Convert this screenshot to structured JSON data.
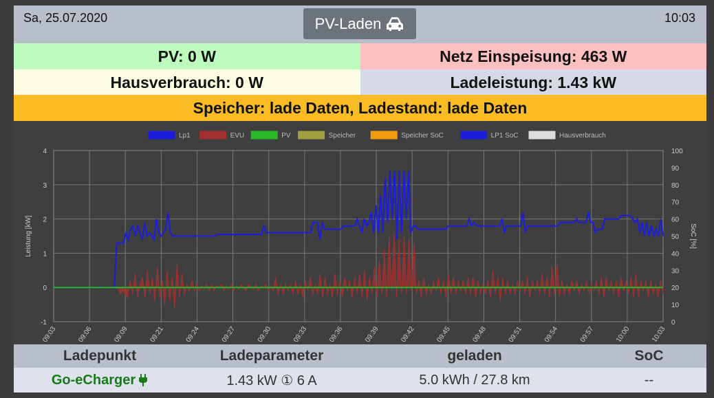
{
  "header": {
    "date": "Sa, 25.07.2020",
    "time": "10:03",
    "mode_label": "PV-Laden",
    "mode_icon": "car-icon"
  },
  "status": {
    "pv": "PV: 0 W",
    "grid": "Netz Einspeisung: 463 W",
    "house": "Hausverbrauch: 0 W",
    "charge_power": "Ladeleistung: 1.43 kW",
    "storage": "Speicher: lade Daten, Ladestand: lade Daten"
  },
  "colors": {
    "pv_bg": "#bdfcbd",
    "grid_bg": "#fcc0c0",
    "house_bg": "#fdfde3",
    "charge_bg": "#d4d9e5",
    "storage_bg": "#fbbc23"
  },
  "chart_data": {
    "type": "line",
    "legend_position": "top",
    "legend": [
      {
        "name": "Lp1",
        "color": "#1c1cdc"
      },
      {
        "name": "EVU",
        "color": "#a33030"
      },
      {
        "name": "PV",
        "color": "#28b828"
      },
      {
        "name": "Speicher",
        "color": "#a0a040"
      },
      {
        "name": "Speicher SoC",
        "color": "#f39c12"
      },
      {
        "name": "LP1 SoC",
        "color": "#1c1cdc"
      },
      {
        "name": "Hausverbrauch",
        "color": "#dddddd"
      }
    ],
    "ylabel_left": "Leistung [kW]",
    "ylabel_right": "SoC [%]",
    "ylim_left": [
      -1,
      4
    ],
    "ylim_right": [
      0,
      100
    ],
    "yticks_left": [
      "-1",
      "0",
      "1",
      "2",
      "3",
      "4"
    ],
    "yticks_right": [
      "0",
      "10",
      "20",
      "30",
      "40",
      "50",
      "60",
      "70",
      "80",
      "90",
      "100"
    ],
    "xticks": [
      "09:03",
      "09:06",
      "09:09",
      "09:21",
      "09:24",
      "09:27",
      "09:30",
      "09:33",
      "09:36",
      "09:39",
      "09:42",
      "09:45",
      "09:48",
      "09:51",
      "09:54",
      "09:57",
      "10:00",
      "10:03"
    ],
    "grid": true,
    "series": [
      {
        "name": "Lp1",
        "values": [
          0,
          0,
          0,
          0,
          0,
          0,
          0,
          0,
          0,
          0.01,
          0,
          0,
          0,
          0,
          0,
          0,
          0,
          0,
          0,
          0,
          0.02,
          0,
          0,
          0,
          0,
          0,
          0,
          1.3,
          1.3,
          1.3,
          1.3,
          1.6,
          1.4,
          1.7,
          1.8,
          1.5,
          1.8,
          1.6,
          1.4,
          1.9,
          1.5,
          1.6,
          1.5,
          1.4,
          2.0,
          1.6,
          1.5,
          1.6,
          1.7,
          2.2,
          1.6,
          1.5,
          1.5,
          1.5,
          1.5,
          1.5,
          1.5,
          1.5,
          1.5,
          1.5,
          1.5,
          1.5,
          1.5,
          1.5,
          1.5,
          1.5,
          1.5,
          1.5,
          1.5,
          1.5,
          1.55,
          1.55,
          1.55,
          1.55,
          1.55,
          1.55,
          1.55,
          1.55,
          1.55,
          1.55,
          1.55,
          1.55,
          1.55,
          1.55,
          1.55,
          1.55,
          1.55,
          1.55,
          1.55,
          1.55,
          1.8,
          1.6,
          1.6,
          1.6,
          1.6,
          1.6,
          1.6,
          1.6,
          1.6,
          1.6,
          1.6,
          1.6,
          1.6,
          1.6,
          1.6,
          1.6,
          1.6,
          1.6,
          1.6,
          1.6,
          1.6,
          1.9,
          1.9,
          1.9,
          1.4,
          1.9,
          1.7,
          1.7,
          1.7,
          1.7,
          1.7,
          1.7,
          1.7,
          1.7,
          1.8,
          1.8,
          1.8,
          1.8,
          1.8,
          1.8,
          2.0,
          1.8,
          1.6,
          2.0,
          1.8,
          1.9,
          2.2,
          1.6,
          2.4,
          1.6,
          2.7,
          1.6,
          3.2,
          1.9,
          3.4,
          2.0,
          3.4,
          1.4,
          3.4,
          1.6,
          3.4,
          2.0,
          3.4,
          1.6,
          1.8,
          1.8,
          1.7,
          1.7,
          1.7,
          1.7,
          1.7,
          1.7,
          1.7,
          1.7,
          1.7,
          1.7,
          1.7,
          1.7,
          1.7,
          1.8,
          1.8,
          1.8,
          1.8,
          1.8,
          1.8,
          1.8,
          1.8,
          1.8,
          2.0,
          1.8,
          1.9,
          1.8,
          1.8,
          1.8,
          1.8,
          1.8,
          1.8,
          1.8,
          1.8,
          1.8,
          1.8,
          1.8,
          2.0,
          1.6,
          1.8,
          1.8,
          1.8,
          1.8,
          1.8,
          1.8,
          1.8,
          2.2,
          1.6,
          1.8,
          1.8,
          1.8,
          1.8,
          1.8,
          1.8,
          1.8,
          1.8,
          1.8,
          1.8,
          1.8,
          1.8,
          1.8,
          1.8,
          1.9,
          1.9,
          1.9,
          1.9,
          1.9,
          1.9,
          1.9,
          2.0,
          1.9,
          1.9,
          1.9,
          1.9,
          2.2,
          1.9,
          1.9,
          1.6,
          1.7,
          1.7,
          1.7,
          2.0,
          2.0,
          2.0,
          2.0,
          2.0,
          2.0,
          2.0,
          2.1,
          2.1,
          2.1,
          2.1,
          2.1,
          2.0,
          1.9,
          2.0,
          1.6,
          1.9,
          1.5,
          1.9,
          1.5,
          1.8,
          1.5,
          1.7,
          1.5,
          2.0,
          1.5
        ]
      },
      {
        "name": "EVU",
        "values": [
          0,
          0,
          0,
          0,
          0,
          0,
          0,
          0,
          0,
          0,
          0,
          0,
          0,
          0,
          0,
          0,
          0,
          0,
          0,
          0,
          0,
          0,
          0,
          0,
          0,
          0,
          0,
          -0.2,
          -0.1,
          -0.2,
          -0.3,
          0.2,
          -0.2,
          0.4,
          -0.3,
          0.1,
          0.3,
          -0.3,
          0.5,
          -0.2,
          0.3,
          -0.4,
          0.6,
          -0.3,
          0.2,
          -0.5,
          0.5,
          -0.4,
          0.3,
          -0.6,
          0.7,
          -0.3,
          0.4,
          -0.2,
          0.1,
          -0.1,
          0.2,
          -0.1,
          0.1,
          -0.1,
          0.05,
          -0.05,
          0.1,
          -0.1,
          0.1,
          -0.1,
          0.05,
          0.0,
          0.1,
          -0.1,
          0.05,
          -0.05,
          0.1,
          -0.1,
          0.05,
          -0.05,
          0.1,
          0.0,
          -0.1,
          0.1,
          0.0,
          -0.05,
          0.1,
          -0.1,
          0.05,
          0.0,
          0.1,
          -0.1,
          0.05,
          -0.1,
          0.3,
          -0.2,
          0.1,
          -0.2,
          0.1,
          -0.1,
          0.1,
          -0.2,
          0.2,
          -0.2,
          0.1,
          -0.3,
          0.2,
          -0.1,
          0.3,
          -0.2,
          0.1,
          -0.2,
          0.4,
          -0.3,
          0.3,
          -0.2,
          0.1,
          -0.3,
          0.4,
          -0.2,
          0.2,
          -0.3,
          0.3,
          -0.1,
          0.2,
          -0.3,
          0.3,
          -0.2,
          0.4,
          -0.3,
          0.5,
          -0.4,
          0.3,
          -0.2,
          0.6,
          -0.3,
          0.8,
          -0.2,
          1.1,
          -0.3,
          1.5,
          -0.1,
          1.6,
          -0.3,
          1.4,
          -0.2,
          1.5,
          -0.2,
          1.4,
          -0.1,
          1.3,
          -0.2,
          0.2,
          -0.3,
          0.3,
          -0.2,
          0.1,
          -0.2,
          0.2,
          -0.1,
          0.3,
          -0.2,
          0.2,
          -0.3,
          0.4,
          -0.2,
          0.3,
          -0.2,
          0.2,
          -0.1,
          0.2,
          -0.2,
          0.3,
          -0.2,
          0.3,
          -0.3,
          0.2,
          -0.2,
          0.1,
          -0.2,
          0.2,
          -0.3,
          0.5,
          -0.2,
          0.3,
          -0.4,
          0.3,
          -0.2,
          0.2,
          -0.2,
          0.1,
          -0.2,
          0.2,
          -0.1,
          0.2,
          -0.2,
          0.3,
          -0.3,
          0.2,
          -0.1,
          0.2,
          -0.2,
          0.4,
          -0.2,
          0.3,
          -0.3,
          0.6,
          -0.2,
          0.7,
          -0.3,
          0.2,
          -0.2,
          0.1,
          -0.2,
          0.2,
          -0.1,
          0.2,
          -0.2,
          0.1,
          -0.1,
          0.2,
          -0.2,
          0.1,
          -0.1,
          0.2,
          -0.2,
          0.3,
          -0.3,
          0.3,
          -0.1,
          0.2,
          -0.2,
          0.2,
          -0.3,
          0.3,
          -0.1,
          0.2,
          -0.2,
          0.3,
          -0.3,
          0.4,
          -0.3,
          0.2,
          -0.1,
          0.2,
          -0.3,
          0.2,
          -0.2,
          0.1,
          -0.3,
          0.2,
          -0.2
        ]
      },
      {
        "name": "PV",
        "values": [
          0,
          0,
          0,
          0,
          0,
          0,
          0,
          0,
          0,
          0,
          0,
          0,
          0,
          0,
          0,
          0,
          0,
          0,
          0,
          0,
          0,
          0,
          0,
          0,
          0,
          0,
          0,
          0,
          0,
          0,
          0,
          0,
          0,
          0,
          0,
          0,
          0,
          0,
          0,
          0,
          0,
          0,
          0,
          0,
          0,
          0,
          0,
          0,
          0,
          0,
          0,
          0,
          0,
          0,
          0,
          0,
          0,
          0,
          0,
          0,
          0,
          0,
          0,
          0,
          0,
          0,
          0,
          0,
          0,
          0,
          0,
          0,
          0,
          0,
          0,
          0,
          0,
          0,
          0,
          0,
          0,
          0,
          0,
          0,
          0,
          0,
          0,
          0,
          0,
          0,
          0,
          0,
          0,
          0,
          0,
          0,
          0,
          0,
          0,
          0,
          0,
          0,
          0,
          0,
          0,
          0,
          0,
          0,
          0,
          0,
          0,
          0,
          0,
          0,
          0,
          0,
          0,
          0,
          0,
          0,
          0,
          0,
          0,
          0,
          0,
          0,
          0,
          0,
          0,
          0,
          0,
          0,
          0,
          0,
          0,
          0,
          0,
          0,
          0,
          0,
          0,
          0,
          0,
          0,
          0,
          0,
          0,
          0,
          0,
          0,
          0,
          0,
          0,
          0,
          0,
          0,
          0,
          0,
          0,
          0,
          0,
          0,
          0,
          0,
          0,
          0,
          0,
          0,
          0,
          0,
          0,
          0,
          0,
          0,
          0,
          0,
          0,
          0,
          0,
          0,
          0,
          0,
          0,
          0,
          0,
          0,
          0,
          0,
          0,
          0,
          0,
          0,
          0,
          0,
          0,
          0,
          0,
          0,
          0,
          0,
          0,
          0,
          0,
          0,
          0,
          0,
          0,
          0,
          0,
          0,
          0,
          0,
          0,
          0,
          0,
          0,
          0,
          0,
          0,
          0,
          0,
          0,
          0,
          0,
          0,
          0,
          0,
          0,
          0,
          0,
          0,
          0,
          0,
          0,
          0,
          0,
          0,
          0,
          0,
          0,
          0,
          0,
          0,
          0,
          0,
          0,
          0,
          0,
          0,
          0,
          0,
          0,
          0,
          0
        ]
      }
    ]
  },
  "table": {
    "headers": [
      "Ladepunkt",
      "Ladeparameter",
      "geladen",
      "SoC"
    ],
    "row": {
      "name": "Go-eCharger",
      "params": "1.43 kW ① 6 A",
      "charged": "5.0 kWh / 27.8 km",
      "soc": "--"
    }
  }
}
